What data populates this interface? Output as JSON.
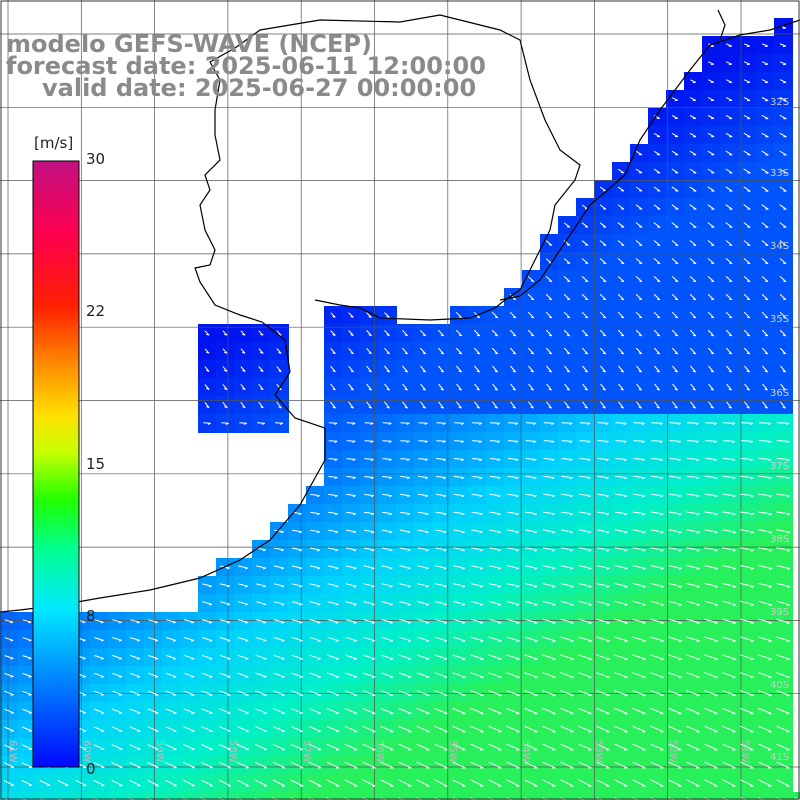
{
  "title": {
    "model": "modelo GEFS-WAVE (NCEP)",
    "forecast": "forecast date: 2025-06-11 12:00:00",
    "valid": "valid date: 2025-06-27 00:00:00"
  },
  "colorbar": {
    "unit": "[m/s]",
    "ticks": [
      "30",
      "22",
      "15",
      "8",
      "0"
    ],
    "tick_values": [
      30,
      22,
      15,
      8,
      0
    ],
    "range": [
      0,
      30
    ],
    "colors": [
      "#0010ff",
      "#0080ff",
      "#00e8ff",
      "#00ff60",
      "#40ff00",
      "#ffff00",
      "#ff9000",
      "#ff0000",
      "#ff0060",
      "#c01080"
    ]
  },
  "map": {
    "lon_labels": [
      "61W",
      "60W",
      "59W",
      "58W",
      "57W",
      "56W",
      "55W",
      "54W",
      "53W",
      "52W",
      "51W"
    ],
    "lat_labels": [
      "32S",
      "33S",
      "34S",
      "35S",
      "36S",
      "37S",
      "38S",
      "39S",
      "40S",
      "41S"
    ],
    "colors": {
      "land": "#ffffff",
      "grid": "#555555",
      "coast": "#000000"
    }
  }
}
